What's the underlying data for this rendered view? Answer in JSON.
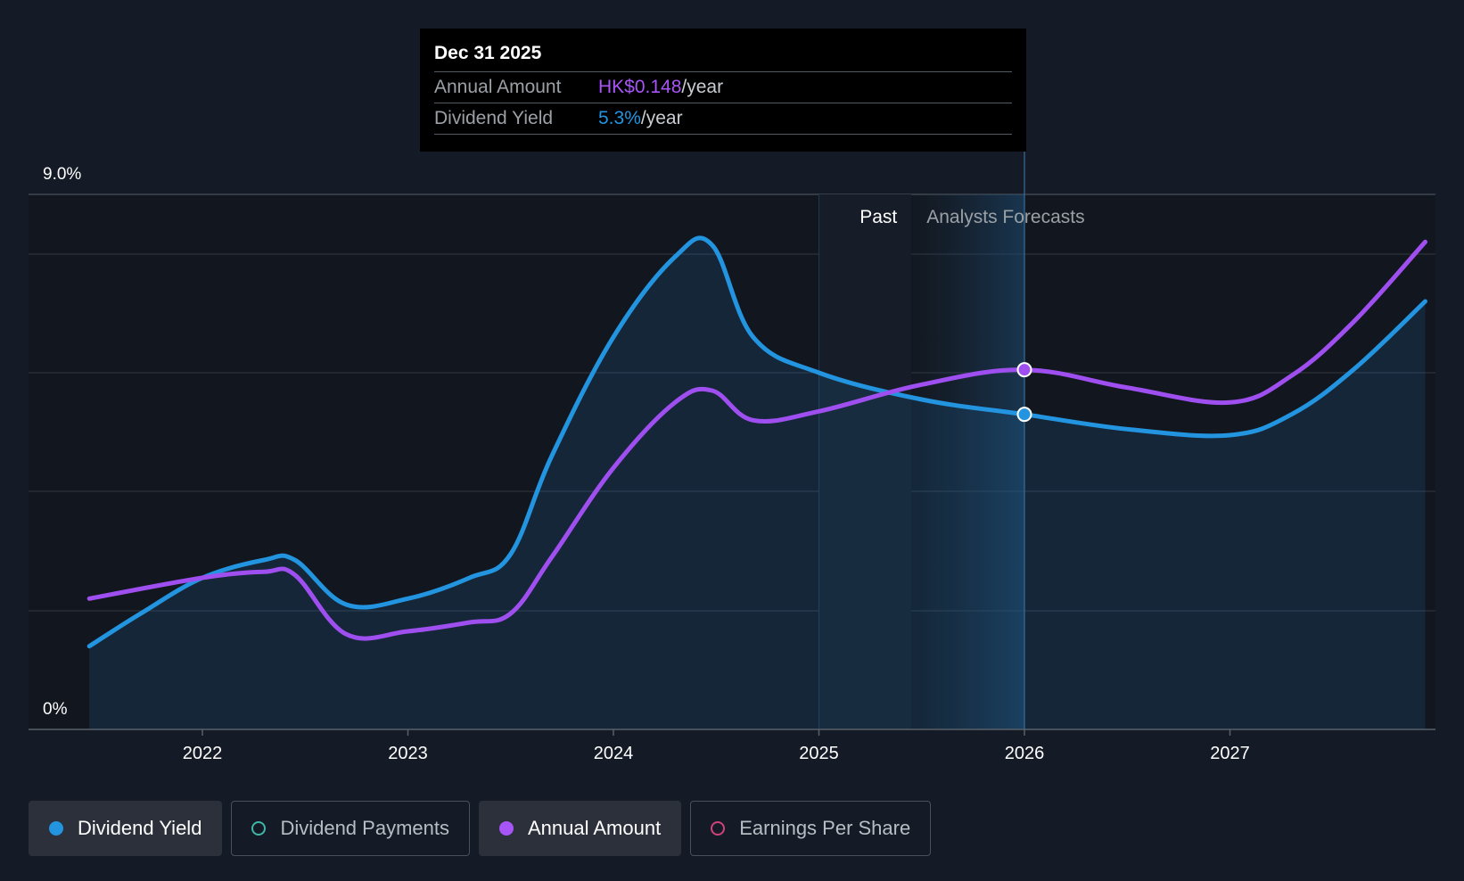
{
  "chart_data": {
    "type": "line",
    "y_axis": {
      "top_label": "9.0%",
      "bottom_label": "0%",
      "ylim": [
        0,
        9.0
      ]
    },
    "x_ticks": [
      "2022",
      "2023",
      "2024",
      "2025",
      "2026",
      "2027"
    ],
    "regions": {
      "past_label": "Past",
      "forecast_label": "Analysts Forecasts"
    },
    "series": [
      {
        "name": "Dividend Yield",
        "color": "#2394df",
        "filled": true,
        "points": [
          [
            2021.45,
            1.4
          ],
          [
            2021.7,
            1.95
          ],
          [
            2022.0,
            2.55
          ],
          [
            2022.3,
            2.85
          ],
          [
            2022.45,
            2.85
          ],
          [
            2022.7,
            2.1
          ],
          [
            2023.0,
            2.2
          ],
          [
            2023.3,
            2.55
          ],
          [
            2023.5,
            2.95
          ],
          [
            2023.7,
            4.6
          ],
          [
            2024.0,
            6.6
          ],
          [
            2024.3,
            7.95
          ],
          [
            2024.48,
            8.15
          ],
          [
            2024.68,
            6.6
          ],
          [
            2025.0,
            6.0
          ],
          [
            2025.5,
            5.55
          ],
          [
            2026.0,
            5.3
          ],
          [
            2026.5,
            5.05
          ],
          [
            2027.0,
            4.95
          ],
          [
            2027.3,
            5.3
          ],
          [
            2027.6,
            6.05
          ],
          [
            2027.95,
            7.2
          ]
        ]
      },
      {
        "name": "Annual Amount",
        "color": "#9f4ff0",
        "filled": false,
        "points": [
          [
            2021.45,
            2.2
          ],
          [
            2022.0,
            2.55
          ],
          [
            2022.3,
            2.65
          ],
          [
            2022.45,
            2.6
          ],
          [
            2022.7,
            1.6
          ],
          [
            2023.0,
            1.65
          ],
          [
            2023.3,
            1.8
          ],
          [
            2023.5,
            1.95
          ],
          [
            2023.7,
            2.9
          ],
          [
            2024.0,
            4.4
          ],
          [
            2024.3,
            5.5
          ],
          [
            2024.48,
            5.7
          ],
          [
            2024.68,
            5.2
          ],
          [
            2025.0,
            5.35
          ],
          [
            2025.5,
            5.8
          ],
          [
            2026.0,
            6.05
          ],
          [
            2026.5,
            5.75
          ],
          [
            2027.0,
            5.5
          ],
          [
            2027.3,
            5.95
          ],
          [
            2027.6,
            6.85
          ],
          [
            2027.95,
            8.2
          ]
        ]
      }
    ],
    "highlight_x": 2026.0
  },
  "tooltip": {
    "date": "Dec 31 2025",
    "rows": [
      {
        "label": "Annual Amount",
        "value": "HK$0.148",
        "unit": "/year",
        "color": "#a855f7"
      },
      {
        "label": "Dividend Yield",
        "value": "5.3%",
        "unit": "/year",
        "color": "#2394df"
      }
    ]
  },
  "legend": [
    {
      "label": "Dividend Yield",
      "color": "#2394df",
      "active": true
    },
    {
      "label": "Dividend Payments",
      "color": "#3fb6a8",
      "active": false
    },
    {
      "label": "Annual Amount",
      "color": "#a855f7",
      "active": true
    },
    {
      "label": "Earnings Per Share",
      "color": "#d0427a",
      "active": false
    }
  ]
}
